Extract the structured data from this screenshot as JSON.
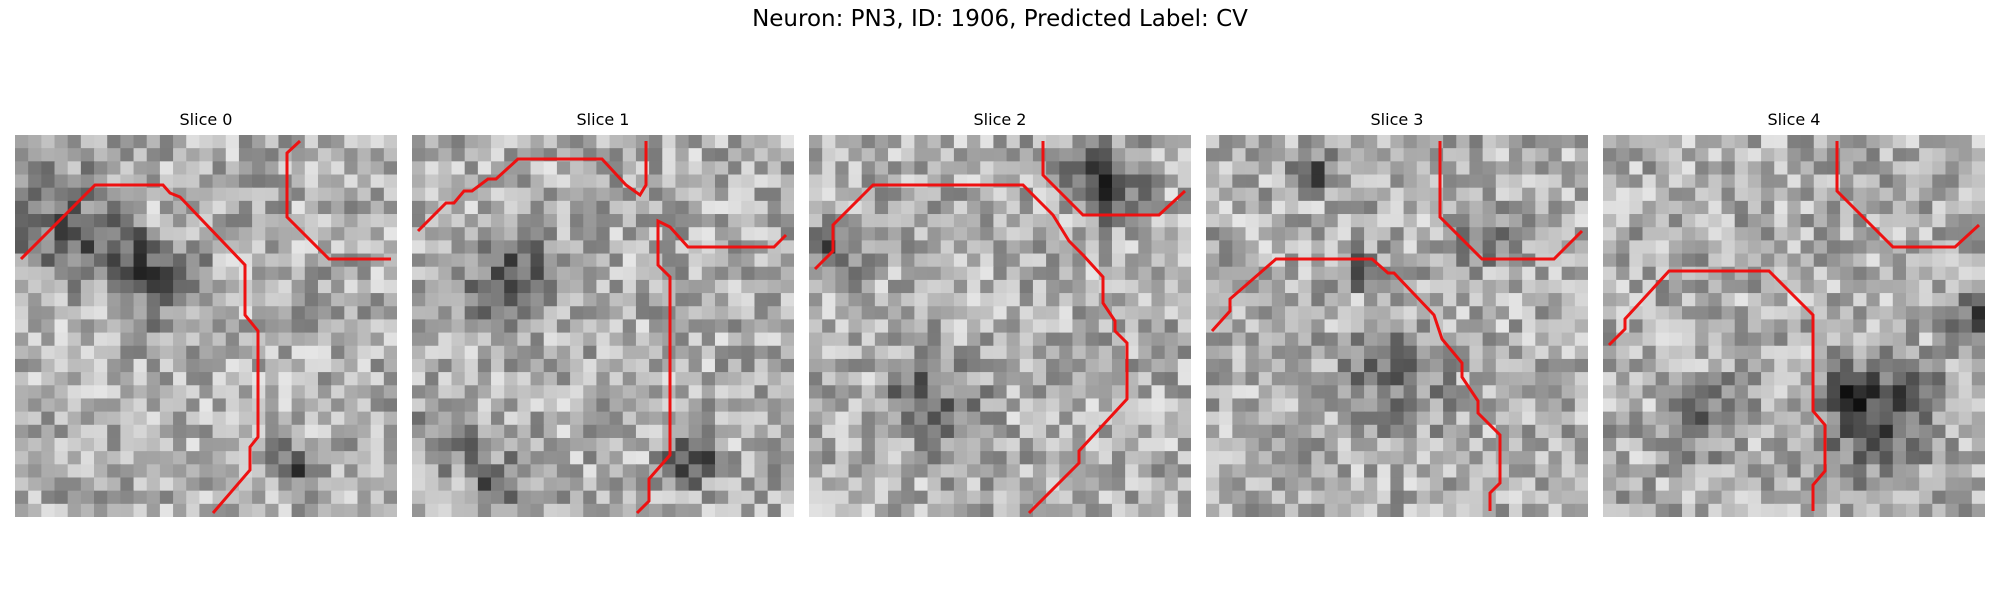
{
  "figure": {
    "title": "Neuron: PN3, ID: 1906, Predicted Label: CV"
  },
  "colors": {
    "contour": "#ee1111",
    "background": "#ffffff"
  },
  "panels": [
    {
      "title": "Slice 0"
    },
    {
      "title": "Slice 1"
    },
    {
      "title": "Slice 2"
    },
    {
      "title": "Slice 3"
    },
    {
      "title": "Slice 4"
    }
  ]
}
